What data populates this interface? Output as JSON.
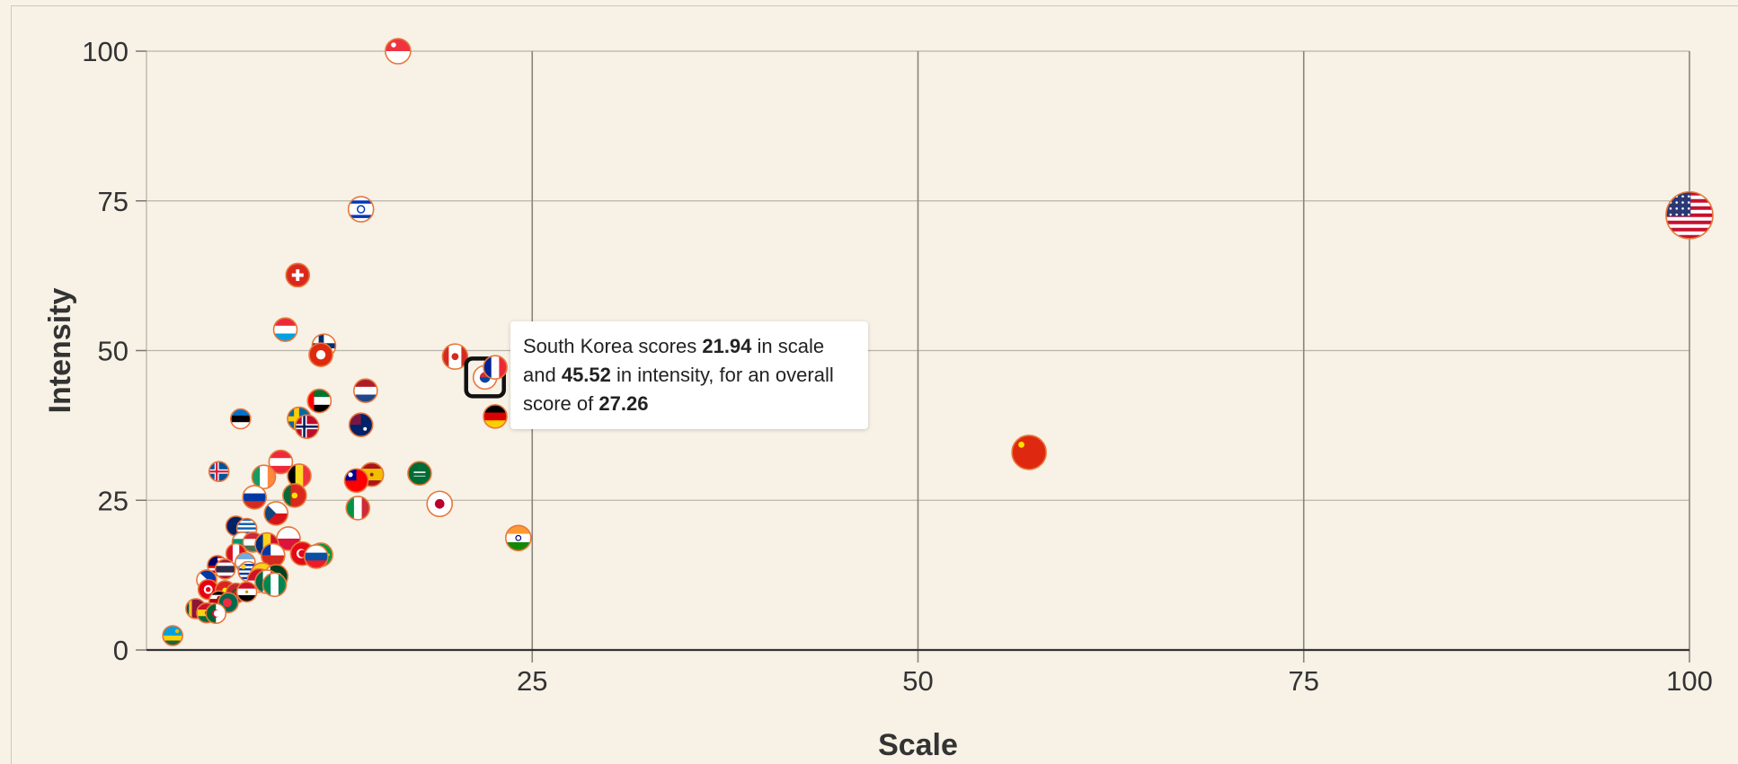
{
  "chart_data": {
    "type": "scatter",
    "title": "",
    "xlabel": "Scale",
    "ylabel": "Intensity",
    "xlim": [
      0,
      100
    ],
    "ylim": [
      0,
      100
    ],
    "xticks": [
      "25",
      "50",
      "75",
      "100"
    ],
    "yticks": [
      "0",
      "25",
      "50",
      "75",
      "100"
    ],
    "grid": true,
    "marker_style": "country-flag",
    "points": [
      {
        "x": 100,
        "y": 72.6,
        "flag": "us"
      },
      {
        "x": 57.2,
        "y": 33.0,
        "flag": "cn"
      },
      {
        "x": 16.3,
        "y": 100,
        "flag": "sg"
      },
      {
        "x": 13.9,
        "y": 73.6,
        "flag": "il"
      },
      {
        "x": 9.8,
        "y": 62.6,
        "flag": "ch"
      },
      {
        "x": 9.0,
        "y": 53.5,
        "flag": "lu"
      },
      {
        "x": 11.5,
        "y": 50.8,
        "flag": "fi"
      },
      {
        "x": 11.3,
        "y": 49.3,
        "flag": "hk"
      },
      {
        "x": 20.0,
        "y": 49.0,
        "flag": "ca"
      },
      {
        "x": 21.94,
        "y": 45.52,
        "flag": "kr",
        "highlighted": true
      },
      {
        "x": 22.6,
        "y": 47.2,
        "flag": "fr"
      },
      {
        "x": 14.2,
        "y": 43.3,
        "flag": "nl"
      },
      {
        "x": 11.2,
        "y": 41.6,
        "flag": "ae"
      },
      {
        "x": 6.1,
        "y": 38.6,
        "flag": "ee"
      },
      {
        "x": 9.9,
        "y": 38.6,
        "flag": "se"
      },
      {
        "x": 10.4,
        "y": 37.3,
        "flag": "no"
      },
      {
        "x": 13.9,
        "y": 37.6,
        "flag": "au"
      },
      {
        "x": 22.6,
        "y": 39.0,
        "flag": "de"
      },
      {
        "x": 17.7,
        "y": 29.5,
        "flag": "sa"
      },
      {
        "x": 14.6,
        "y": 29.3,
        "flag": "es"
      },
      {
        "x": 13.6,
        "y": 28.3,
        "flag": "tw"
      },
      {
        "x": 9.9,
        "y": 29.1,
        "flag": "be"
      },
      {
        "x": 8.7,
        "y": 31.4,
        "flag": "at"
      },
      {
        "x": 7.6,
        "y": 28.9,
        "flag": "ie"
      },
      {
        "x": 4.7,
        "y": 29.8,
        "flag": "is"
      },
      {
        "x": 9.6,
        "y": 25.8,
        "flag": "pt"
      },
      {
        "x": 7.0,
        "y": 25.5,
        "flag": "ru"
      },
      {
        "x": 8.4,
        "y": 22.8,
        "flag": "cz"
      },
      {
        "x": 13.7,
        "y": 23.7,
        "flag": "it"
      },
      {
        "x": 19.0,
        "y": 24.4,
        "flag": "jp"
      },
      {
        "x": 24.1,
        "y": 18.7,
        "flag": "in"
      },
      {
        "x": 5.8,
        "y": 20.7,
        "flag": "nz"
      },
      {
        "x": 6.5,
        "y": 20.3,
        "flag": "gr"
      },
      {
        "x": 9.2,
        "y": 18.6,
        "flag": "pl"
      },
      {
        "x": 6.2,
        "y": 18.0,
        "flag": "bg"
      },
      {
        "x": 6.9,
        "y": 18.0,
        "flag": "hu"
      },
      {
        "x": 7.8,
        "y": 17.6,
        "flag": "ro"
      },
      {
        "x": 10.1,
        "y": 16.1,
        "flag": "tr"
      },
      {
        "x": 11.3,
        "y": 15.9,
        "flag": "br"
      },
      {
        "x": 11.0,
        "y": 15.6,
        "flag": "sk"
      },
      {
        "x": 8.2,
        "y": 15.8,
        "flag": "cl"
      },
      {
        "x": 5.8,
        "y": 16.1,
        "flag": "pe"
      },
      {
        "x": 6.4,
        "y": 14.6,
        "flag": "ar"
      },
      {
        "x": 4.6,
        "y": 14.1,
        "flag": "my"
      },
      {
        "x": 5.1,
        "y": 13.5,
        "flag": "th"
      },
      {
        "x": 6.6,
        "y": 13.1,
        "flag": "uy"
      },
      {
        "x": 7.5,
        "y": 12.6,
        "flag": "co"
      },
      {
        "x": 8.4,
        "y": 12.3,
        "flag": "pk"
      },
      {
        "x": 3.9,
        "y": 11.7,
        "flag": "ph"
      },
      {
        "x": 7.3,
        "y": 11.6,
        "flag": "id"
      },
      {
        "x": 7.8,
        "y": 11.4,
        "flag": "mx"
      },
      {
        "x": 8.3,
        "y": 10.9,
        "flag": "ng"
      },
      {
        "x": 4.0,
        "y": 10.1,
        "flag": "tn"
      },
      {
        "x": 5.1,
        "y": 9.9,
        "flag": "vn"
      },
      {
        "x": 5.8,
        "y": 9.5,
        "flag": "ma"
      },
      {
        "x": 6.5,
        "y": 9.7,
        "flag": "eg"
      },
      {
        "x": 4.7,
        "y": 8.2,
        "flag": "ke"
      },
      {
        "x": 5.3,
        "y": 7.9,
        "flag": "bd"
      },
      {
        "x": 3.2,
        "y": 6.9,
        "flag": "lk"
      },
      {
        "x": 3.9,
        "y": 6.2,
        "flag": "gh"
      },
      {
        "x": 4.5,
        "y": 6.1,
        "flag": "dz"
      },
      {
        "x": 1.7,
        "y": 2.4,
        "flag": "rw"
      }
    ],
    "tooltip": {
      "country": "South Korea",
      "scale": "21.94",
      "intensity": "45.52",
      "overall": "27.26"
    }
  },
  "tooltip_text": {
    "p1": "South Korea scores ",
    "v1": "21.94",
    "p2": " in scale and ",
    "v2": "45.52",
    "p3": " in intensity, for an overall score of ",
    "v3": "27.26"
  },
  "colors": {
    "background": "#f7f1e6",
    "grid": "#b9b4aa",
    "axis": "#333333",
    "marker_border": "#e8773a",
    "highlight_border": "#111111"
  }
}
